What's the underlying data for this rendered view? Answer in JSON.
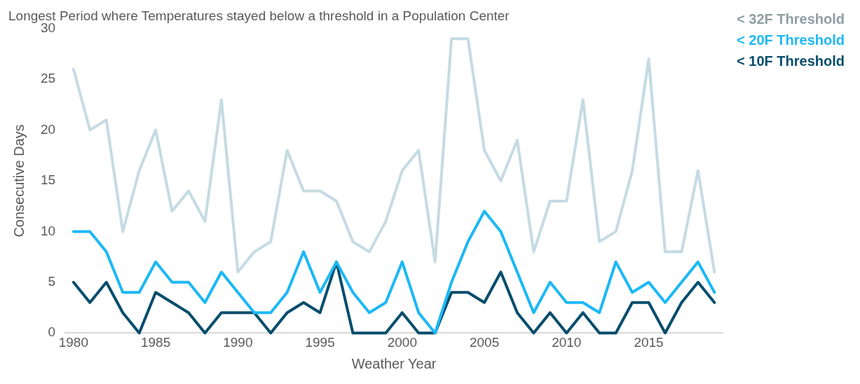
{
  "chart_data": {
    "type": "line",
    "title": "Longest Period where Temperatures stayed below a threshold in a Population Center",
    "xlabel": "Weather Year",
    "ylabel": "Consecutive Days",
    "x": [
      1980,
      1981,
      1982,
      1983,
      1984,
      1985,
      1986,
      1987,
      1988,
      1989,
      1990,
      1991,
      1992,
      1993,
      1994,
      1995,
      1996,
      1997,
      1998,
      1999,
      2000,
      2001,
      2002,
      2003,
      2004,
      2005,
      2006,
      2007,
      2008,
      2009,
      2010,
      2011,
      2012,
      2013,
      2014,
      2015,
      2016,
      2017,
      2018,
      2019
    ],
    "xlim": [
      1979.5,
      2019.5
    ],
    "xticks": [
      1980,
      1985,
      1990,
      1995,
      2000,
      2005,
      2010,
      2015
    ],
    "ylim": [
      0,
      30
    ],
    "yticks": [
      0,
      5,
      10,
      15,
      20,
      25,
      30
    ],
    "grid": false,
    "legend": "top right",
    "marker": "none",
    "line_style": "solid",
    "series": [
      {
        "name": "< 32F Threshold",
        "color": "#c5dbe4",
        "values": [
          26,
          20,
          21,
          10,
          16,
          20,
          12,
          14,
          11,
          23,
          6,
          8,
          9,
          18,
          14,
          14,
          13,
          9,
          8,
          11,
          16,
          18,
          7,
          29,
          29,
          18,
          15,
          19,
          8,
          13,
          13,
          23,
          9,
          10,
          16,
          27,
          8,
          8,
          16,
          6
        ]
      },
      {
        "name": "< 20F Threshold",
        "color": "#1cb8f5",
        "values": [
          10,
          10,
          8,
          4,
          4,
          7,
          5,
          5,
          3,
          6,
          4,
          2,
          2,
          4,
          8,
          4,
          7,
          4,
          2,
          3,
          7,
          2,
          0,
          5,
          9,
          12,
          10,
          6,
          2,
          5,
          3,
          3,
          2,
          7,
          4,
          5,
          3,
          5,
          7,
          4
        ]
      },
      {
        "name": "< 10F Threshold",
        "color": "#064d6c",
        "values": [
          5,
          3,
          5,
          2,
          0,
          4,
          3,
          2,
          0,
          2,
          2,
          2,
          0,
          2,
          3,
          2,
          7,
          0,
          0,
          0,
          2,
          0,
          0,
          4,
          4,
          3,
          6,
          2,
          0,
          2,
          0,
          2,
          0,
          0,
          3,
          3,
          0,
          3,
          5,
          3
        ]
      }
    ]
  }
}
